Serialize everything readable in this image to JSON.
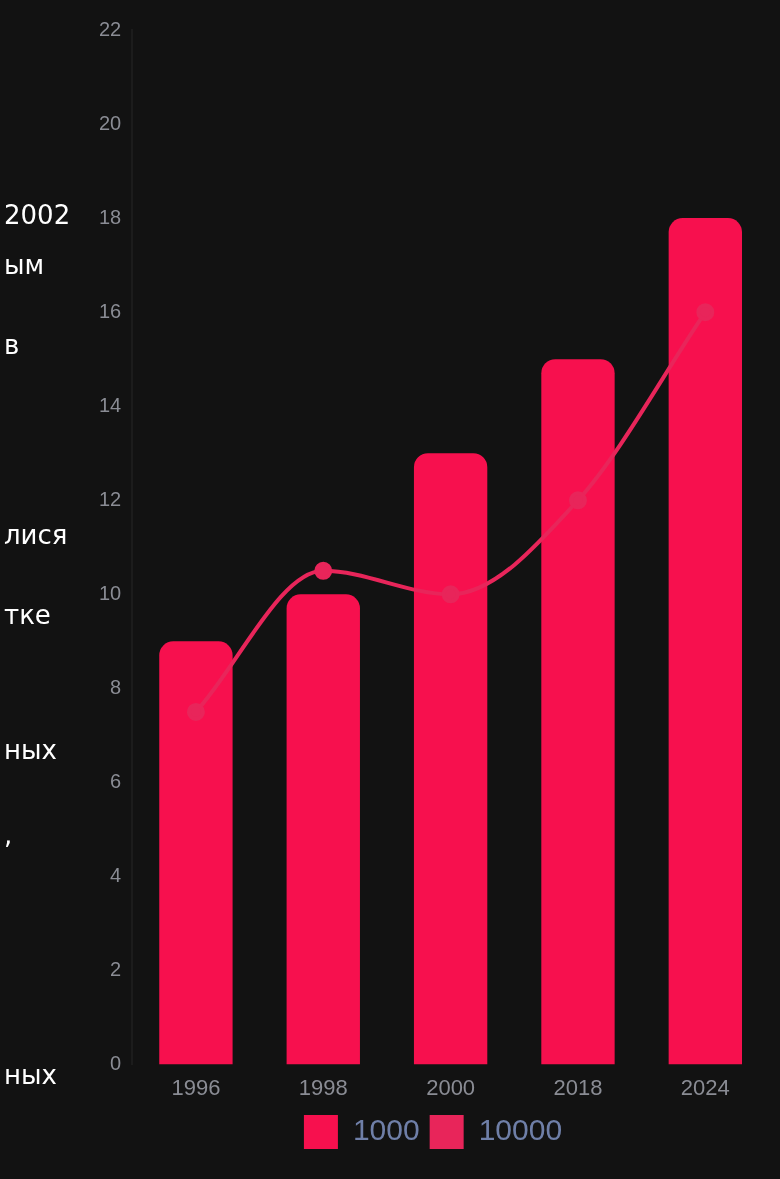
{
  "chart_data": {
    "type": "bar",
    "categories": [
      "1996",
      "1998",
      "2000",
      "2018",
      "2024"
    ],
    "series": [
      {
        "name": "1000",
        "color": "#f7104e",
        "values": [
          9,
          10,
          13,
          15,
          18
        ]
      },
      {
        "name": "10000",
        "type": "line",
        "color": "#e8255a",
        "values": [
          7.5,
          10.5,
          10,
          12,
          16
        ]
      }
    ],
    "ylim": [
      0,
      22
    ],
    "yticks": [
      0,
      2,
      4,
      6,
      8,
      10,
      12,
      14,
      16,
      18,
      20,
      22
    ],
    "grid": false,
    "legend": "bottom",
    "marker": "circle",
    "line_style": "solid",
    "annotations": [
      "2002",
      "ым",
      "в",
      "лися",
      "тке",
      "ных",
      ",",
      "ных"
    ]
  }
}
